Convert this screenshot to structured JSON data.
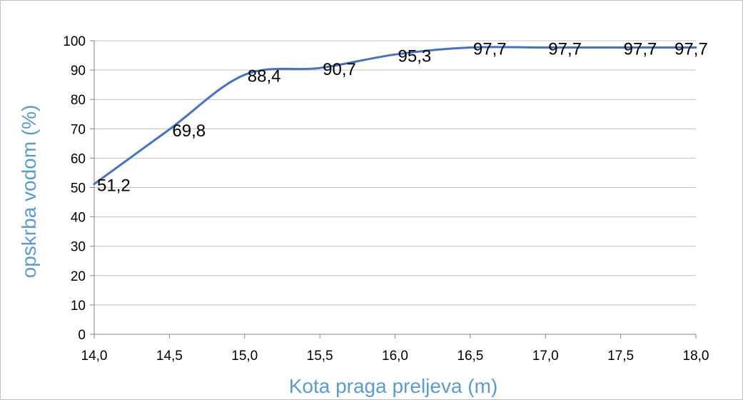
{
  "chart_data": {
    "type": "line",
    "title": "",
    "xlabel": "Kota praga preljeva (m)",
    "ylabel": "opskrba vodom (%)",
    "x": [
      14.0,
      14.5,
      15.0,
      15.5,
      16.0,
      16.5,
      17.0,
      17.5,
      18.0
    ],
    "x_tick_labels": [
      "14,0",
      "14,5",
      "15,0",
      "15,5",
      "16,0",
      "16,5",
      "17,0",
      "17,5",
      "18,0"
    ],
    "xlim": [
      14.0,
      18.0
    ],
    "ylim": [
      0,
      100
    ],
    "y_ticks": [
      0,
      10,
      20,
      30,
      40,
      50,
      60,
      70,
      80,
      90,
      100
    ],
    "y_tick_labels": [
      "0",
      "10",
      "20",
      "30",
      "40",
      "50",
      "60",
      "70",
      "80",
      "90",
      "100"
    ],
    "series": [
      {
        "values": [
          51.2,
          69.8,
          88.4,
          90.7,
          95.3,
          97.7,
          97.7,
          97.7,
          97.7
        ],
        "data_labels": [
          "51,2",
          "69,8",
          "88,4",
          "90,7",
          "95,3",
          "97,7",
          "97,7",
          "97,7",
          "97,7"
        ],
        "color": "#4472c4"
      }
    ],
    "grid": true,
    "legend": "none",
    "colors": {
      "axis_title": "#5b9bd5",
      "gridline": "#bfbfbf",
      "line": "#4472c4"
    }
  }
}
